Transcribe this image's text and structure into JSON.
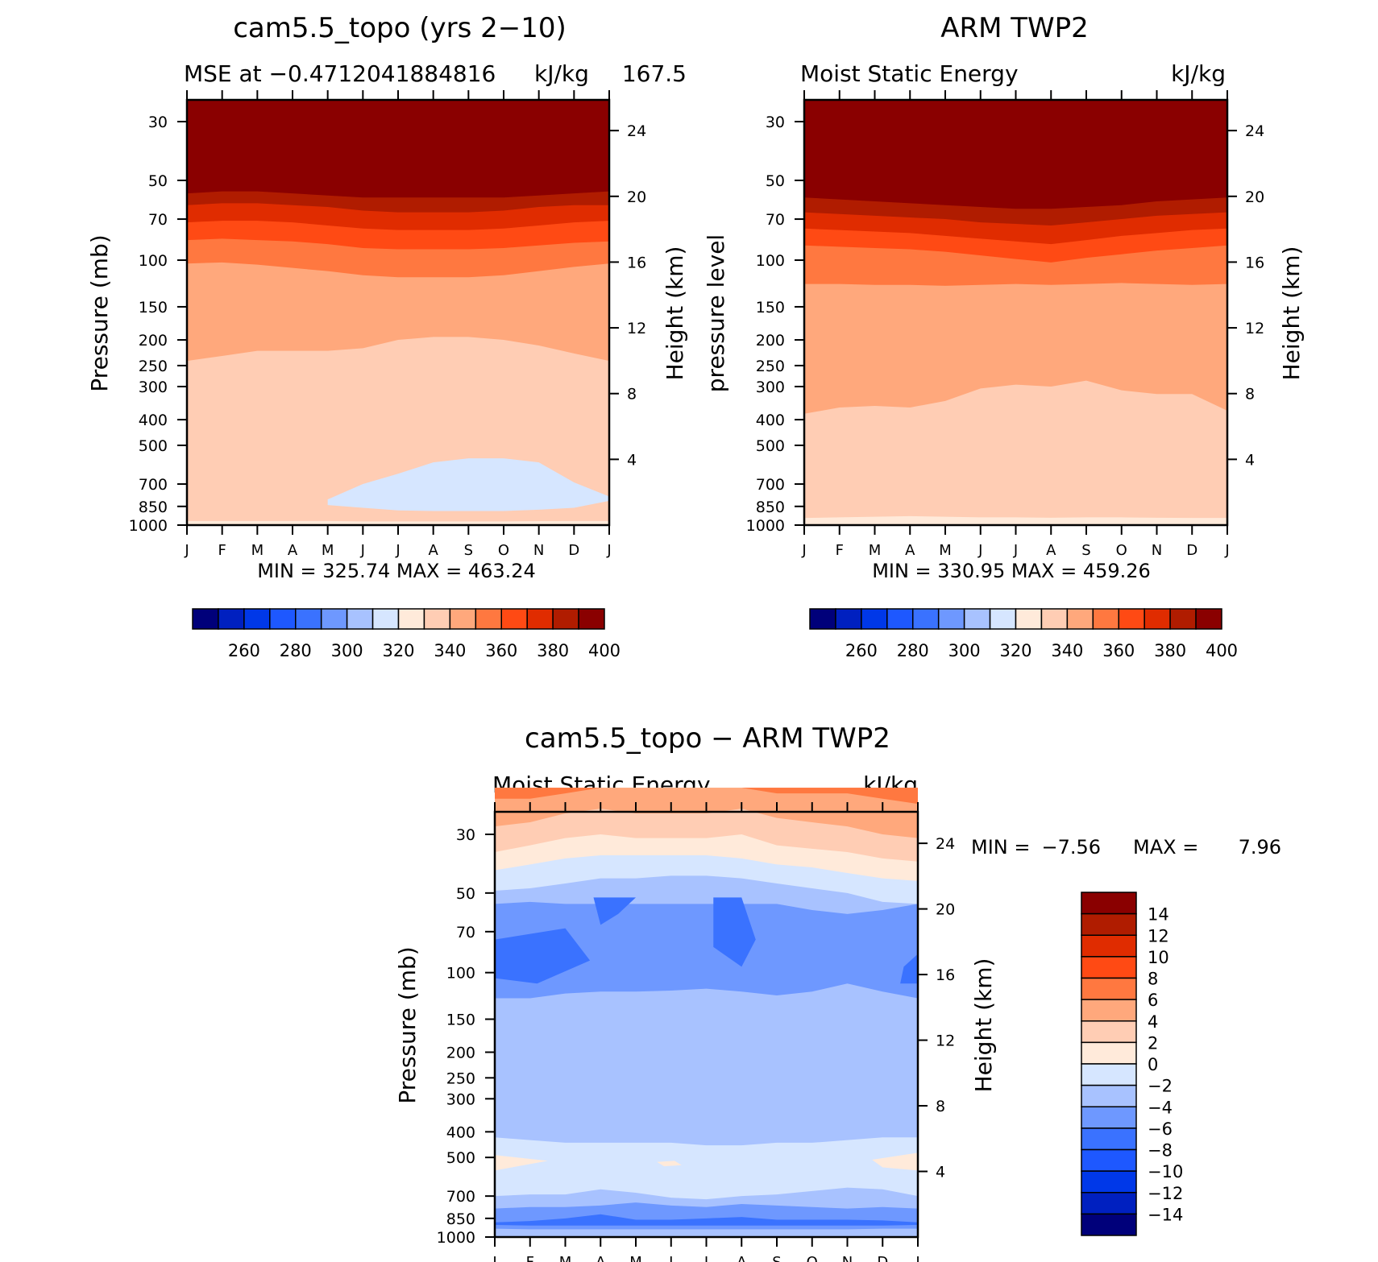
{
  "chart_data": [
    {
      "type": "heatmap",
      "title": "cam5.5_topo (yrs 2−10)",
      "subtitle_left": "MSE at −0.4712041884816",
      "subtitle_right": "kJ/kg",
      "subtitle_extra": "167.5",
      "ylabel": "Pressure (mb)",
      "ylabel_right": "Height (km)",
      "x": [
        "J",
        "F",
        "M",
        "A",
        "M",
        "J",
        "J",
        "A",
        "S",
        "O",
        "N",
        "D",
        "J"
      ],
      "y_pressure_ticks": [
        30,
        50,
        70,
        100,
        150,
        200,
        250,
        300,
        400,
        500,
        700,
        850,
        1000
      ],
      "y_height_ticks": [
        24,
        20,
        16,
        12,
        8,
        4
      ],
      "ylim": [
        1000,
        20
      ],
      "stats": "MIN = 325.74 MAX = 463.24",
      "colorbar_labels": [
        "260",
        "280",
        "300",
        "320",
        "340",
        "360",
        "380",
        "400"
      ],
      "levels": [
        250,
        260,
        270,
        280,
        290,
        300,
        310,
        320,
        330,
        340,
        350,
        360,
        370,
        380,
        390
      ],
      "contour_boundaries": [
        {
          "level": 390,
          "pressure": [
            56,
            55,
            55,
            56,
            57,
            58,
            58,
            58,
            58,
            58,
            57,
            56,
            55
          ]
        },
        {
          "level": 380,
          "pressure": [
            62,
            61,
            61,
            62,
            63,
            65,
            66,
            66,
            66,
            65,
            63,
            62,
            62
          ]
        },
        {
          "level": 370,
          "pressure": [
            72,
            71,
            71,
            72,
            74,
            76,
            77,
            77,
            77,
            76,
            74,
            72,
            71
          ]
        },
        {
          "level": 360,
          "pressure": [
            84,
            83,
            84,
            85,
            87,
            90,
            91,
            91,
            91,
            90,
            88,
            86,
            85
          ]
        },
        {
          "level": 350,
          "pressure": [
            103,
            102,
            104,
            107,
            110,
            114,
            116,
            116,
            116,
            114,
            110,
            106,
            103
          ]
        },
        {
          "level": 340,
          "pressure": [
            240,
            230,
            220,
            220,
            220,
            215,
            200,
            195,
            195,
            200,
            210,
            225,
            240
          ]
        },
        {
          "level": 330,
          "pressure": [
            965,
            965,
            965,
            965,
            965,
            968,
            968,
            968,
            968,
            968,
            966,
            965,
            965
          ]
        }
      ],
      "low_region_320": {
        "description": "",
        "months": [
          4,
          5,
          6,
          7,
          8,
          9,
          10,
          11,
          12
        ],
        "top": [
          800,
          700,
          640,
          580,
          560,
          560,
          580,
          690,
          780
        ],
        "bottom": [
          840,
          860,
          880,
          885,
          885,
          885,
          875,
          860,
          810
        ]
      }
    },
    {
      "type": "heatmap",
      "title": "ARM TWP2",
      "subtitle_left": "Moist Static Energy",
      "subtitle_right": "kJ/kg",
      "ylabel": "pressure level",
      "ylabel_right": "Height (km)",
      "x": [
        "J",
        "F",
        "M",
        "A",
        "M",
        "J",
        "J",
        "A",
        "S",
        "O",
        "N",
        "D",
        "J"
      ],
      "y_pressure_ticks": [
        30,
        50,
        70,
        100,
        150,
        200,
        250,
        300,
        400,
        500,
        700,
        850,
        1000
      ],
      "y_height_ticks": [
        24,
        20,
        16,
        12,
        8,
        4
      ],
      "ylim": [
        1000,
        20
      ],
      "stats": "MIN = 330.95 MAX = 459.26",
      "colorbar_labels": [
        "260",
        "280",
        "300",
        "320",
        "340",
        "360",
        "380",
        "400"
      ],
      "levels": [
        250,
        260,
        270,
        280,
        290,
        300,
        310,
        320,
        330,
        340,
        350,
        360,
        370,
        380,
        390
      ],
      "contour_boundaries": [
        {
          "level": 390,
          "pressure": [
            58,
            59,
            60,
            61,
            62,
            63,
            64,
            64,
            63,
            62,
            60,
            59,
            58
          ]
        },
        {
          "level": 380,
          "pressure": [
            66,
            67,
            68,
            69,
            70,
            72,
            73,
            74,
            72,
            70,
            68,
            67,
            66
          ]
        },
        {
          "level": 370,
          "pressure": [
            76,
            77,
            78,
            79,
            81,
            83,
            85,
            87,
            84,
            81,
            79,
            77,
            76
          ]
        },
        {
          "level": 360,
          "pressure": [
            88,
            89,
            90,
            91,
            93,
            96,
            99,
            102,
            98,
            95,
            92,
            90,
            88
          ]
        },
        {
          "level": 350,
          "pressure": [
            123,
            123,
            124,
            124,
            125,
            124,
            123,
            124,
            123,
            122,
            123,
            124,
            123
          ]
        },
        {
          "level": 340,
          "pressure": [
            380,
            360,
            355,
            360,
            340,
            305,
            295,
            300,
            285,
            310,
            320,
            320,
            370
          ]
        },
        {
          "level": 330,
          "pressure": [
            940,
            935,
            930,
            925,
            930,
            935,
            935,
            938,
            935,
            935,
            938,
            940,
            940
          ]
        }
      ]
    },
    {
      "type": "heatmap",
      "title": "cam5.5_topo − ARM TWP2",
      "subtitle_left": "Moist Static Energy",
      "subtitle_right": "kJ/kg",
      "ylabel": "Pressure (mb)",
      "ylabel_right": "Height (km)",
      "x": [
        "J",
        "F",
        "M",
        "A",
        "M",
        "J",
        "J",
        "A",
        "S",
        "O",
        "N",
        "D",
        "J"
      ],
      "y_pressure_ticks": [
        30,
        50,
        70,
        100,
        150,
        200,
        250,
        300,
        400,
        500,
        700,
        850,
        1000
      ],
      "y_height_ticks": [
        24,
        20,
        16,
        12,
        8,
        4
      ],
      "ylim": [
        1000,
        20
      ],
      "stats_min_label": "MIN =",
      "stats_min": "−7.56",
      "stats_max_label": "MAX =",
      "stats_max": "7.96",
      "colorbar_labels": [
        "14",
        "12",
        "10",
        "8",
        "6",
        "4",
        "2",
        "0",
        "−2",
        "−4",
        "−6",
        "−8",
        "−10",
        "−12",
        "−14"
      ],
      "levels": [
        -14,
        -12,
        -10,
        -8,
        -6,
        -4,
        -2,
        0,
        2,
        4,
        6,
        8,
        10,
        12,
        14
      ]
    }
  ]
}
